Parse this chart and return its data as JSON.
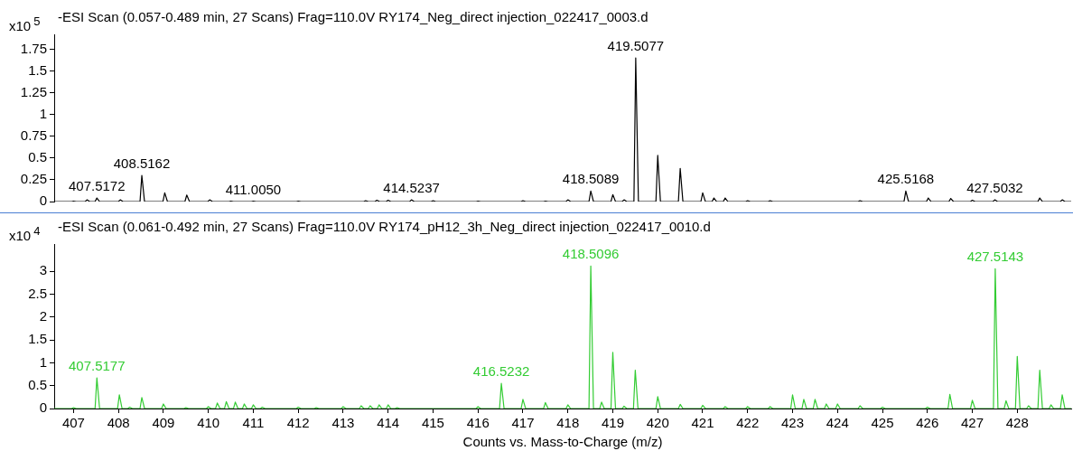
{
  "chart_data": [
    {
      "type": "line",
      "title": "-ESI Scan (0.057-0.489 min, 27 Scans) Frag=110.0V RY174_Neg_direct injection_022417_0003.d",
      "ylabel": "x10$^{5}$",
      "color": "#000000",
      "xlim": [
        406.57,
        429.2
      ],
      "ylim": [
        0,
        1.92
      ],
      "yticks": [
        0,
        0.25,
        0.5,
        0.75,
        1,
        1.25,
        1.5,
        1.75
      ],
      "tick_labels": "y",
      "x": [
        406.57,
        406.96,
        407.0,
        407.06,
        407.26,
        407.3,
        407.36,
        407.48,
        407.52,
        407.58,
        408.0,
        408.04,
        408.1,
        408.48,
        408.52,
        408.58,
        408.99,
        409.03,
        409.09,
        409.48,
        409.52,
        409.58,
        409.99,
        410.03,
        410.09,
        410.46,
        410.5,
        410.56,
        410.96,
        411.0,
        411.06,
        411.96,
        412.0,
        412.06,
        413.46,
        413.5,
        413.56,
        413.71,
        413.75,
        413.81,
        413.96,
        414.0,
        414.06,
        414.48,
        414.52,
        414.58,
        414.96,
        415.0,
        415.06,
        415.96,
        416.0,
        416.06,
        416.96,
        417.0,
        417.06,
        417.46,
        417.5,
        417.56,
        417.96,
        418.0,
        418.06,
        418.47,
        418.51,
        418.57,
        418.96,
        419.0,
        419.06,
        419.21,
        419.25,
        419.31,
        419.47,
        419.51,
        419.57,
        419.96,
        420.0,
        420.06,
        420.46,
        420.5,
        420.56,
        420.96,
        421.0,
        421.06,
        421.21,
        421.25,
        421.31,
        421.46,
        421.5,
        421.56,
        421.96,
        422.0,
        422.06,
        422.46,
        422.5,
        422.56,
        424.46,
        424.5,
        424.56,
        425.48,
        425.52,
        425.58,
        425.98,
        426.02,
        426.08,
        426.48,
        426.52,
        426.58,
        426.96,
        427.0,
        427.06,
        427.46,
        427.5,
        427.56,
        428.46,
        428.5,
        428.56,
        428.96,
        429.0,
        429.06,
        429.2
      ],
      "values": [
        0,
        0,
        0.005,
        0,
        0,
        0.02,
        0,
        0,
        0.04,
        0,
        0,
        0.02,
        0,
        0,
        0.3,
        0,
        0,
        0.1,
        0,
        0,
        0.075,
        0,
        0,
        0.02,
        0,
        0,
        0.005,
        0,
        0,
        0.005,
        0,
        0,
        0.005,
        0,
        0,
        0.01,
        0,
        0,
        0.015,
        0,
        0,
        0.015,
        0,
        0,
        0.02,
        0,
        0,
        0.01,
        0,
        0,
        0.005,
        0,
        0,
        0.01,
        0,
        0,
        0.005,
        0,
        0,
        0.02,
        0,
        0,
        0.12,
        0,
        0,
        0.08,
        0,
        0,
        0.02,
        0,
        0,
        1.65,
        0,
        0,
        0.53,
        0,
        0,
        0.38,
        0,
        0,
        0.1,
        0,
        0,
        0.04,
        0,
        0,
        0.04,
        0,
        0,
        0.01,
        0,
        0,
        0.01,
        0,
        0,
        0.01,
        0,
        0,
        0.12,
        0,
        0,
        0.04,
        0,
        0,
        0.035,
        0,
        0,
        0.015,
        0,
        0,
        0.02,
        0,
        0,
        0.04,
        0,
        0,
        0.02,
        0,
        0
      ],
      "annotations": [
        {
          "text": "407.5172",
          "x": 407.52,
          "y": 0.04
        },
        {
          "text": "408.5162",
          "x": 408.52,
          "y": 0.3
        },
        {
          "text": "411.0050",
          "x": 411.0,
          "y": 0.005
        },
        {
          "text": "414.5237",
          "x": 414.52,
          "y": 0.02
        },
        {
          "text": "418.5089",
          "x": 418.51,
          "y": 0.12
        },
        {
          "text": "419.5077",
          "x": 419.51,
          "y": 1.65
        },
        {
          "text": "425.5168",
          "x": 425.52,
          "y": 0.12
        },
        {
          "text": "427.5032",
          "x": 427.5,
          "y": 0.02
        }
      ]
    },
    {
      "type": "line",
      "title": "-ESI Scan (0.061-0.492 min, 27 Scans) Frag=110.0V RY174_pH12_3h_Neg_direct injection_022417_0010.d",
      "ylabel": "x10$^{4}$",
      "xlabel": "Counts vs. Mass-to-Charge (m/z)",
      "color": "#33cc33",
      "xlim": [
        406.57,
        429.2
      ],
      "ylim": [
        0,
        3.6
      ],
      "xticks": [
        407,
        408,
        409,
        410,
        411,
        412,
        413,
        414,
        415,
        416,
        417,
        418,
        419,
        420,
        421,
        422,
        423,
        424,
        425,
        426,
        427,
        428
      ],
      "yticks": [
        0,
        0.5,
        1,
        1.5,
        2,
        2.5,
        3
      ],
      "x": [
        406.57,
        406.96,
        407.0,
        407.06,
        407.48,
        407.52,
        407.58,
        407.98,
        408.02,
        408.08,
        408.21,
        408.25,
        408.31,
        408.48,
        408.52,
        408.58,
        408.96,
        409.0,
        409.06,
        409.46,
        409.5,
        409.56,
        409.96,
        410.0,
        410.06,
        410.16,
        410.2,
        410.26,
        410.36,
        410.4,
        410.46,
        410.56,
        410.6,
        410.66,
        410.76,
        410.8,
        410.86,
        410.96,
        411.0,
        411.06,
        411.16,
        411.2,
        411.26,
        411.96,
        412.0,
        412.06,
        412.36,
        412.4,
        412.46,
        412.96,
        413.0,
        413.06,
        413.36,
        413.4,
        413.46,
        413.56,
        413.6,
        413.66,
        413.76,
        413.8,
        413.86,
        413.96,
        414.0,
        414.06,
        414.16,
        414.2,
        414.26,
        415.96,
        416.0,
        416.06,
        416.48,
        416.52,
        416.58,
        416.96,
        417.0,
        417.06,
        417.46,
        417.5,
        417.56,
        417.96,
        418.0,
        418.06,
        418.47,
        418.51,
        418.57,
        418.71,
        418.75,
        418.81,
        418.96,
        419.0,
        419.06,
        419.21,
        419.25,
        419.31,
        419.46,
        419.5,
        419.56,
        419.96,
        420.0,
        420.06,
        420.46,
        420.5,
        420.56,
        420.96,
        421.0,
        421.06,
        421.46,
        421.5,
        421.56,
        421.96,
        422.0,
        422.06,
        422.46,
        422.5,
        422.56,
        422.96,
        423.0,
        423.06,
        423.21,
        423.25,
        423.31,
        423.46,
        423.5,
        423.56,
        423.71,
        423.75,
        423.81,
        423.96,
        424.0,
        424.06,
        424.46,
        424.5,
        424.56,
        424.96,
        425.0,
        425.06,
        425.96,
        426.0,
        426.06,
        426.46,
        426.5,
        426.56,
        426.96,
        427.0,
        427.06,
        427.47,
        427.51,
        427.57,
        427.71,
        427.75,
        427.81,
        427.96,
        428.0,
        428.06,
        428.21,
        428.25,
        428.31,
        428.46,
        428.5,
        428.56,
        428.71,
        428.75,
        428.81,
        428.96,
        429.0,
        429.06,
        429.2
      ],
      "values": [
        0,
        0,
        0.02,
        0,
        0,
        0.67,
        0,
        0,
        0.3,
        0,
        0,
        0.03,
        0,
        0,
        0.24,
        0,
        0,
        0.1,
        0,
        0,
        0.02,
        0,
        0,
        0.04,
        0,
        0,
        0.12,
        0,
        0,
        0.15,
        0,
        0,
        0.14,
        0,
        0,
        0.1,
        0,
        0,
        0.08,
        0,
        0,
        0.03,
        0,
        0,
        0.03,
        0,
        0,
        0.02,
        0,
        0,
        0.04,
        0,
        0,
        0.06,
        0,
        0,
        0.06,
        0,
        0,
        0.08,
        0,
        0,
        0.08,
        0,
        0,
        0.02,
        0,
        0,
        0.04,
        0,
        0,
        0.55,
        0,
        0,
        0.2,
        0,
        0,
        0.13,
        0,
        0,
        0.08,
        0,
        0,
        3.12,
        0,
        0,
        0.14,
        0,
        0,
        1.23,
        0,
        0,
        0.05,
        0,
        0,
        0.84,
        0,
        0,
        0.26,
        0,
        0,
        0.09,
        0,
        0,
        0.07,
        0,
        0,
        0.04,
        0,
        0,
        0.04,
        0,
        0,
        0.04,
        0,
        0,
        0.3,
        0,
        0,
        0.2,
        0,
        0,
        0.2,
        0,
        0,
        0.1,
        0,
        0,
        0.1,
        0,
        0,
        0.06,
        0,
        0,
        0.03,
        0,
        0,
        0.03,
        0,
        0,
        0.31,
        0,
        0,
        0.18,
        0,
        0,
        3.06,
        0,
        0,
        0.17,
        0,
        0,
        1.14,
        0,
        0,
        0.06,
        0,
        0,
        0.84,
        0,
        0,
        0.08,
        0,
        0,
        0.3,
        0,
        0
      ],
      "annotations": [
        {
          "text": "407.5177",
          "x": 407.52,
          "y": 0.67
        },
        {
          "text": "416.5232",
          "x": 416.52,
          "y": 0.55
        },
        {
          "text": "418.5096",
          "x": 418.51,
          "y": 3.12
        },
        {
          "text": "427.5143",
          "x": 427.51,
          "y": 3.06
        }
      ]
    }
  ]
}
